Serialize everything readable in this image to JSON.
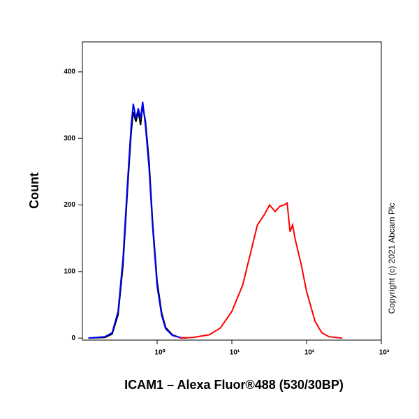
{
  "chart_data": {
    "type": "line",
    "x_label": "ICAM1 – Alexa Fluor®488 (530/30BP)",
    "y_label": "Count",
    "annotation": "Copyright (c) 2021 Abcam Plc",
    "xscale": "log",
    "xlim": [
      0.1,
      1000
    ],
    "ylim": [
      -3,
      445
    ],
    "xticks": [
      {
        "value": 1,
        "label": "10⁰"
      },
      {
        "value": 10,
        "label": "10¹"
      },
      {
        "value": 100,
        "label": "10²"
      },
      {
        "value": 1000,
        "label": "10³"
      }
    ],
    "yticks": [
      0,
      100,
      200,
      300,
      400
    ],
    "series": [
      {
        "color": "#000000",
        "x": [
          0.12,
          0.2,
          0.25,
          0.3,
          0.35,
          0.4,
          0.45,
          0.48,
          0.52,
          0.56,
          0.6,
          0.64,
          0.7,
          0.78,
          0.87,
          1.0,
          1.15,
          1.3,
          1.6,
          2.0,
          2.5
        ],
        "values": [
          0,
          1,
          6,
          35,
          110,
          220,
          310,
          340,
          325,
          340,
          320,
          350,
          325,
          265,
          175,
          85,
          38,
          16,
          5,
          1,
          0
        ]
      },
      {
        "color": "#0000ff",
        "x": [
          0.12,
          0.2,
          0.25,
          0.3,
          0.35,
          0.4,
          0.45,
          0.48,
          0.52,
          0.56,
          0.6,
          0.64,
          0.7,
          0.78,
          0.87,
          1.0,
          1.15,
          1.3,
          1.6,
          2.0,
          2.5
        ],
        "values": [
          0,
          2,
          8,
          40,
          120,
          230,
          320,
          352,
          330,
          345,
          330,
          355,
          318,
          255,
          168,
          78,
          34,
          14,
          4,
          1,
          0
        ]
      },
      {
        "color": "#ff0000",
        "x": [
          2,
          3,
          5,
          7,
          10,
          14,
          18,
          22,
          27,
          32,
          38,
          44,
          50,
          55,
          60,
          65,
          70,
          85,
          100,
          130,
          160,
          200,
          300
        ],
        "values": [
          0,
          1,
          5,
          15,
          40,
          80,
          130,
          170,
          185,
          200,
          190,
          198,
          200,
          203,
          160,
          170,
          150,
          110,
          70,
          25,
          8,
          2,
          0
        ]
      }
    ]
  }
}
